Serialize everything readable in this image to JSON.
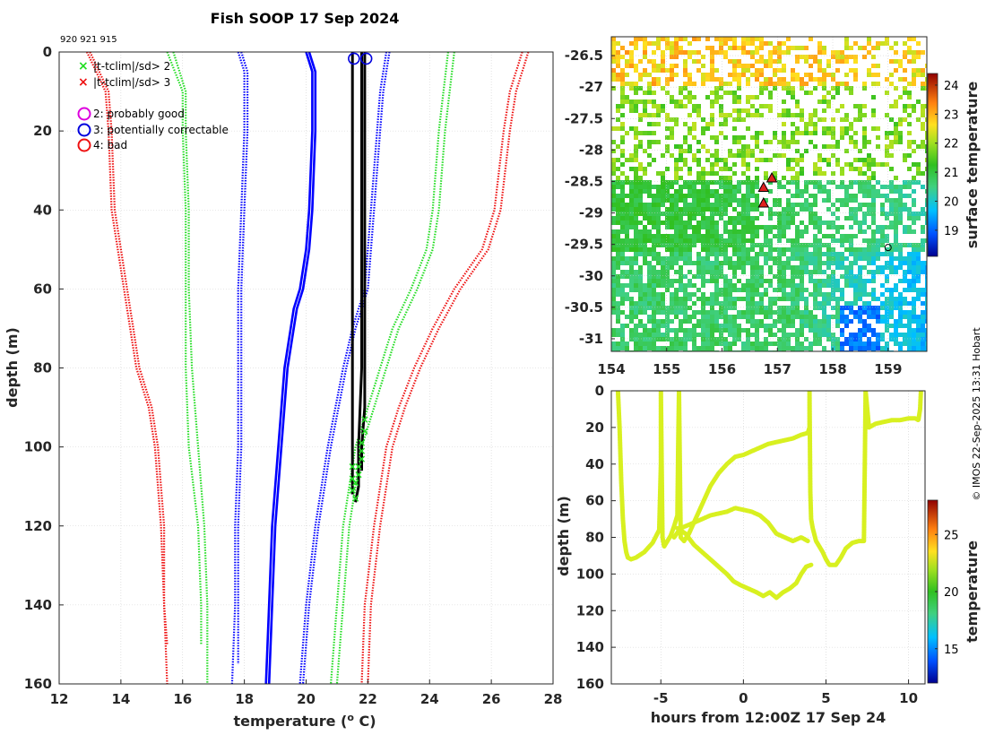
{
  "chart_data": [
    {
      "type": "line",
      "title": "Fish SOOP 17 Sep 2024",
      "subtitle": "920 921 915",
      "xlabel": "temperature (o C)",
      "xlabel_main": "temperature (",
      "xlabel_sup": "o",
      "xlabel_end": " C)",
      "ylabel": "depth (m)",
      "xlim": [
        12,
        28
      ],
      "ylim": [
        0,
        160
      ],
      "xticks": [
        12,
        14,
        16,
        18,
        20,
        22,
        24,
        26,
        28
      ],
      "yticks": [
        0,
        20,
        40,
        60,
        80,
        100,
        120,
        140,
        160
      ],
      "legend": [
        {
          "label": "|t-tclim|/sd> 2",
          "marker": "x",
          "color": "#22dd22"
        },
        {
          "label": "|t-tclim|/sd> 3",
          "marker": "x",
          "color": "#ee1111"
        },
        {
          "label": "2: probably good",
          "marker": "o",
          "color": "#dd00dd"
        },
        {
          "label": "3: potentially correctable",
          "marker": "o",
          "color": "#0000dd"
        },
        {
          "label": "4: bad",
          "marker": "o",
          "color": "#ee1111"
        }
      ],
      "series": [
        {
          "name": "clim mean A",
          "style": "solid",
          "color": "#0000ff",
          "depth": [
            0,
            5,
            10,
            20,
            40,
            50,
            60,
            65,
            70,
            80,
            100,
            120,
            140,
            160
          ],
          "temperature": [
            20.1,
            20.3,
            20.3,
            20.3,
            20.2,
            20.1,
            19.9,
            19.7,
            19.6,
            19.4,
            19.2,
            19.0,
            18.9,
            18.8
          ]
        },
        {
          "name": "clim mean B",
          "style": "solid",
          "color": "#0000ff",
          "depth": [
            0,
            5,
            10,
            20,
            40,
            50,
            60,
            65,
            70,
            80,
            100,
            120,
            140,
            160
          ],
          "temperature": [
            20.0,
            20.2,
            20.2,
            20.2,
            20.1,
            20.0,
            19.8,
            19.6,
            19.5,
            19.3,
            19.1,
            18.9,
            18.8,
            18.7
          ]
        },
        {
          "name": "clim -1sd A",
          "style": "dotted",
          "color": "#0000ff",
          "depth": [
            0,
            5,
            10,
            20,
            40,
            60,
            80,
            100,
            120,
            140,
            155
          ],
          "temperature": [
            17.9,
            18.1,
            18.1,
            18.1,
            18.0,
            17.9,
            17.9,
            17.9,
            17.8,
            17.8,
            17.8
          ]
        },
        {
          "name": "clim -1sd B",
          "style": "dotted",
          "color": "#0000ff",
          "depth": [
            0,
            5,
            10,
            20,
            40,
            60,
            80,
            100,
            120,
            140,
            160
          ],
          "temperature": [
            17.8,
            18.0,
            18.0,
            18.0,
            17.9,
            17.8,
            17.8,
            17.8,
            17.7,
            17.7,
            17.6
          ]
        },
        {
          "name": "clim +1sd A",
          "style": "dotted",
          "color": "#0000ff",
          "depth": [
            0,
            5,
            10,
            20,
            40,
            60,
            70,
            80,
            100,
            120,
            140,
            160
          ],
          "temperature": [
            22.7,
            22.6,
            22.5,
            22.4,
            22.2,
            22.0,
            21.6,
            21.3,
            20.8,
            20.4,
            20.1,
            19.9
          ]
        },
        {
          "name": "clim +1sd B",
          "style": "dotted",
          "color": "#0000ff",
          "depth": [
            0,
            5,
            10,
            20,
            40,
            60,
            70,
            80,
            100,
            120,
            140,
            160
          ],
          "temperature": [
            22.6,
            22.5,
            22.4,
            22.3,
            22.1,
            21.9,
            21.5,
            21.2,
            20.7,
            20.3,
            20.0,
            19.8
          ]
        },
        {
          "name": "clim -2sd A",
          "style": "dotted",
          "color": "#22dd22",
          "depth": [
            0,
            10,
            20,
            40,
            60,
            80,
            100,
            120,
            140,
            150
          ],
          "temperature": [
            15.5,
            16.0,
            16.0,
            16.1,
            16.1,
            16.1,
            16.2,
            16.5,
            16.6,
            16.6
          ]
        },
        {
          "name": "clim -2sd B",
          "style": "dotted",
          "color": "#22dd22",
          "depth": [
            0,
            10,
            20,
            40,
            60,
            80,
            100,
            120,
            140,
            160
          ],
          "temperature": [
            15.7,
            16.1,
            16.1,
            16.2,
            16.2,
            16.3,
            16.5,
            16.7,
            16.8,
            16.8
          ]
        },
        {
          "name": "clim +2sd A",
          "style": "dotted",
          "color": "#22dd22",
          "depth": [
            0,
            20,
            40,
            50,
            60,
            70,
            80,
            90,
            100,
            120,
            140,
            160
          ],
          "temperature": [
            24.8,
            24.5,
            24.3,
            24.1,
            23.6,
            23.0,
            22.6,
            22.2,
            21.8,
            21.4,
            21.2,
            21.0
          ]
        },
        {
          "name": "clim +2sd B",
          "style": "dotted",
          "color": "#22dd22",
          "depth": [
            0,
            20,
            40,
            50,
            60,
            70,
            80,
            90,
            100,
            120,
            140,
            160
          ],
          "temperature": [
            24.6,
            24.3,
            24.1,
            23.9,
            23.4,
            22.8,
            22.4,
            22.0,
            21.6,
            21.2,
            21.0,
            20.8
          ]
        },
        {
          "name": "clim -3sd A",
          "style": "dotted",
          "color": "#ee1111",
          "depth": [
            0,
            10,
            20,
            40,
            50,
            60,
            70,
            80,
            90,
            100,
            110,
            120,
            140,
            150
          ],
          "temperature": [
            13.0,
            13.6,
            13.7,
            13.8,
            14.0,
            14.2,
            14.4,
            14.6,
            15.0,
            15.2,
            15.3,
            15.4,
            15.4,
            15.5
          ]
        },
        {
          "name": "clim -3sd B",
          "style": "dotted",
          "color": "#ee1111",
          "depth": [
            0,
            10,
            20,
            40,
            50,
            60,
            70,
            80,
            90,
            100,
            110,
            120,
            140,
            160
          ],
          "temperature": [
            12.9,
            13.5,
            13.6,
            13.7,
            13.9,
            14.1,
            14.3,
            14.5,
            14.9,
            15.1,
            15.2,
            15.3,
            15.4,
            15.5
          ]
        },
        {
          "name": "clim +3sd A",
          "style": "dotted",
          "color": "#ee1111",
          "depth": [
            0,
            10,
            20,
            40,
            50,
            60,
            70,
            80,
            90,
            100,
            120,
            140,
            160
          ],
          "temperature": [
            27.2,
            26.8,
            26.6,
            26.3,
            25.9,
            25.0,
            24.3,
            23.7,
            23.2,
            22.8,
            22.4,
            22.1,
            22.0
          ]
        },
        {
          "name": "clim +3sd B",
          "style": "dotted",
          "color": "#ee1111",
          "depth": [
            0,
            10,
            20,
            40,
            50,
            60,
            70,
            80,
            90,
            100,
            120,
            140,
            160
          ],
          "temperature": [
            27.0,
            26.6,
            26.4,
            26.1,
            25.7,
            24.8,
            24.1,
            23.5,
            23.0,
            22.6,
            22.2,
            21.9,
            21.8
          ]
        },
        {
          "name": "profile 920",
          "style": "solid",
          "color": "#000000",
          "depth": [
            0,
            10,
            40,
            80,
            100,
            110,
            114
          ],
          "temperature": [
            21.8,
            21.8,
            21.8,
            21.8,
            21.7,
            21.7,
            21.6
          ]
        },
        {
          "name": "profile 921",
          "style": "solid",
          "color": "#000000",
          "depth": [
            0,
            10,
            40,
            80,
            90,
            100,
            106
          ],
          "temperature": [
            21.9,
            21.9,
            21.9,
            21.9,
            21.9,
            21.8,
            21.8
          ]
        },
        {
          "name": "profile 915",
          "style": "solid",
          "color": "#000000",
          "depth": [
            0,
            10,
            40,
            80,
            100,
            112
          ],
          "temperature": [
            21.5,
            21.5,
            21.5,
            21.5,
            21.5,
            21.5
          ]
        }
      ],
      "flag_points_sd2": [
        {
          "t": 21.9,
          "d": 93
        },
        {
          "t": 21.9,
          "d": 96
        },
        {
          "t": 21.8,
          "d": 99
        },
        {
          "t": 21.8,
          "d": 101
        },
        {
          "t": 21.8,
          "d": 103
        },
        {
          "t": 21.7,
          "d": 105
        },
        {
          "t": 21.7,
          "d": 107
        },
        {
          "t": 21.6,
          "d": 109
        },
        {
          "t": 21.5,
          "d": 105
        },
        {
          "t": 21.5,
          "d": 108
        },
        {
          "t": 21.5,
          "d": 111
        },
        {
          "t": 21.6,
          "d": 113
        }
      ],
      "qc_circles": [
        {
          "t": 21.55,
          "d": 1,
          "color": "#0000dd"
        },
        {
          "t": 21.95,
          "d": 1,
          "color": "#0000dd"
        }
      ]
    },
    {
      "type": "heatmap",
      "xlim": [
        154,
        159.7
      ],
      "ylim": [
        -31.2,
        -26.2
      ],
      "xticks": [
        154,
        155,
        156,
        157,
        158,
        159
      ],
      "yticks": [
        -26.5,
        -27,
        -27.5,
        -28,
        -28.5,
        -29,
        -29.5,
        -30,
        -30.5,
        -31
      ],
      "colorbar": {
        "label": "surface temperature",
        "min": 18.1,
        "max": 24.4,
        "ticks": [
          19,
          20,
          21,
          22,
          23,
          24
        ]
      },
      "markers": [
        {
          "lon": 156.9,
          "lat": -28.45,
          "kind": "triangle"
        },
        {
          "lon": 156.75,
          "lat": -28.6,
          "kind": "triangle"
        },
        {
          "lon": 156.75,
          "lat": -28.85,
          "kind": "triangle"
        },
        {
          "lon": 159.0,
          "lat": -29.55,
          "kind": "circle"
        }
      ]
    },
    {
      "type": "line",
      "xlabel": "hours from 12:00Z 17 Sep 24",
      "ylabel": "depth (m)",
      "xlim": [
        -8,
        11
      ],
      "ylim": [
        0,
        160
      ],
      "xticks": [
        -5,
        0,
        5,
        10
      ],
      "yticks": [
        0,
        20,
        40,
        60,
        80,
        100,
        120,
        140,
        160
      ],
      "colorbar": {
        "label": "temperature",
        "min": 12,
        "max": 28,
        "ticks": [
          15,
          20,
          25
        ]
      },
      "series": [
        {
          "name": "track",
          "color": "#d8f020",
          "x": [
            -7.6,
            -7.5,
            -7.4,
            -7.3,
            -7.2,
            -7.1,
            -7.0,
            -6.8,
            -6.5,
            -6.0,
            -5.5,
            -5.1,
            -5.0,
            -5.0,
            -4.9,
            -4.8,
            -4.6,
            -4.4,
            -4.2,
            -4.0,
            -3.95,
            -3.9,
            -3.8,
            -3.6,
            -3.3,
            -3.0,
            -2.5,
            -2.0,
            -1.5,
            -1.0,
            -0.5,
            0.0,
            0.5,
            1.0,
            1.5,
            2.0,
            2.5,
            3.0,
            3.5,
            3.9,
            4.0,
            4.0,
            4.05,
            4.1,
            4.2,
            4.4,
            4.6,
            4.8,
            5.0,
            5.2,
            5.4,
            5.6,
            5.9,
            6.2,
            6.6,
            7.0,
            7.3,
            7.35,
            7.4,
            7.6,
            8.0,
            8.5,
            9.0,
            9.5,
            10.0,
            10.4,
            10.6,
            10.7,
            10.75
          ],
          "y": [
            0,
            20,
            50,
            70,
            82,
            88,
            91,
            92,
            91,
            88,
            83,
            76,
            40,
            0,
            80,
            85,
            82,
            79,
            74,
            68,
            30,
            0,
            80,
            82,
            78,
            72,
            62,
            52,
            45,
            40,
            36,
            35,
            33,
            31,
            29,
            28,
            27,
            26,
            24,
            23,
            20,
            0,
            55,
            70,
            75,
            82,
            85,
            88,
            92,
            95,
            95,
            95,
            91,
            86,
            83,
            82,
            82,
            40,
            0,
            20,
            18,
            17,
            16,
            16,
            15,
            15,
            16,
            10,
            0
          ]
        },
        {
          "name": "track 2",
          "color": "#d8f020",
          "x": [
            -4.0,
            -3.5,
            -3.0,
            -2.5,
            -2.0,
            -1.5,
            -1.0,
            -0.6,
            -0.2,
            0.3,
            0.8,
            1.2,
            1.6,
            2.0,
            2.4,
            2.8,
            3.2,
            3.5,
            3.8,
            4.1
          ],
          "y": [
            75,
            78,
            84,
            88,
            92,
            96,
            100,
            104,
            106,
            108,
            110,
            112,
            110,
            113,
            110,
            108,
            105,
            100,
            96,
            95
          ]
        },
        {
          "name": "track 3",
          "color": "#d8f020",
          "x": [
            -4.2,
            -3.8,
            -3.0,
            -2.5,
            -2.0,
            -1.5,
            -1.0,
            -0.5,
            0.0,
            0.5,
            1.0,
            1.5,
            2.0,
            2.5,
            3.0,
            3.5,
            3.9
          ],
          "y": [
            80,
            75,
            72,
            70,
            68,
            67,
            66,
            64,
            65,
            66,
            68,
            72,
            78,
            80,
            82,
            80,
            82
          ]
        }
      ]
    }
  ],
  "credit": "© IMOS 22-Sep-2025 13:31 Hobart"
}
